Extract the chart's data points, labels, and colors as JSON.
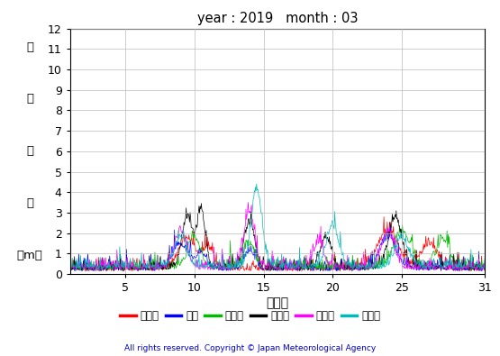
{
  "title": "year : 2019   month : 03",
  "xlabel": "（日）",
  "copyright": "All rights reserved. Copyright © Japan Meteorological Agency",
  "xlim": [
    1,
    31
  ],
  "ylim": [
    0,
    12
  ],
  "yticks": [
    0,
    1,
    2,
    3,
    4,
    5,
    6,
    7,
    8,
    9,
    10,
    11,
    12
  ],
  "xticks": [
    5,
    10,
    15,
    20,
    25,
    31
  ],
  "series": [
    {
      "name": "上ノ国",
      "color": "#ff0000"
    },
    {
      "name": "唐桑",
      "color": "#0000ff"
    },
    {
      "name": "石廘崎",
      "color": "#00bb00"
    },
    {
      "name": "経ヶ山",
      "color": "#000000"
    },
    {
      "name": "生月島",
      "color": "#ff00ff"
    },
    {
      "name": "屋久島",
      "color": "#00bbbb"
    }
  ],
  "ylabel_chars": [
    "有",
    "義",
    "波",
    "高",
    "（m）"
  ],
  "background_color": "#ffffff",
  "grid_color": "#bbbbbb"
}
